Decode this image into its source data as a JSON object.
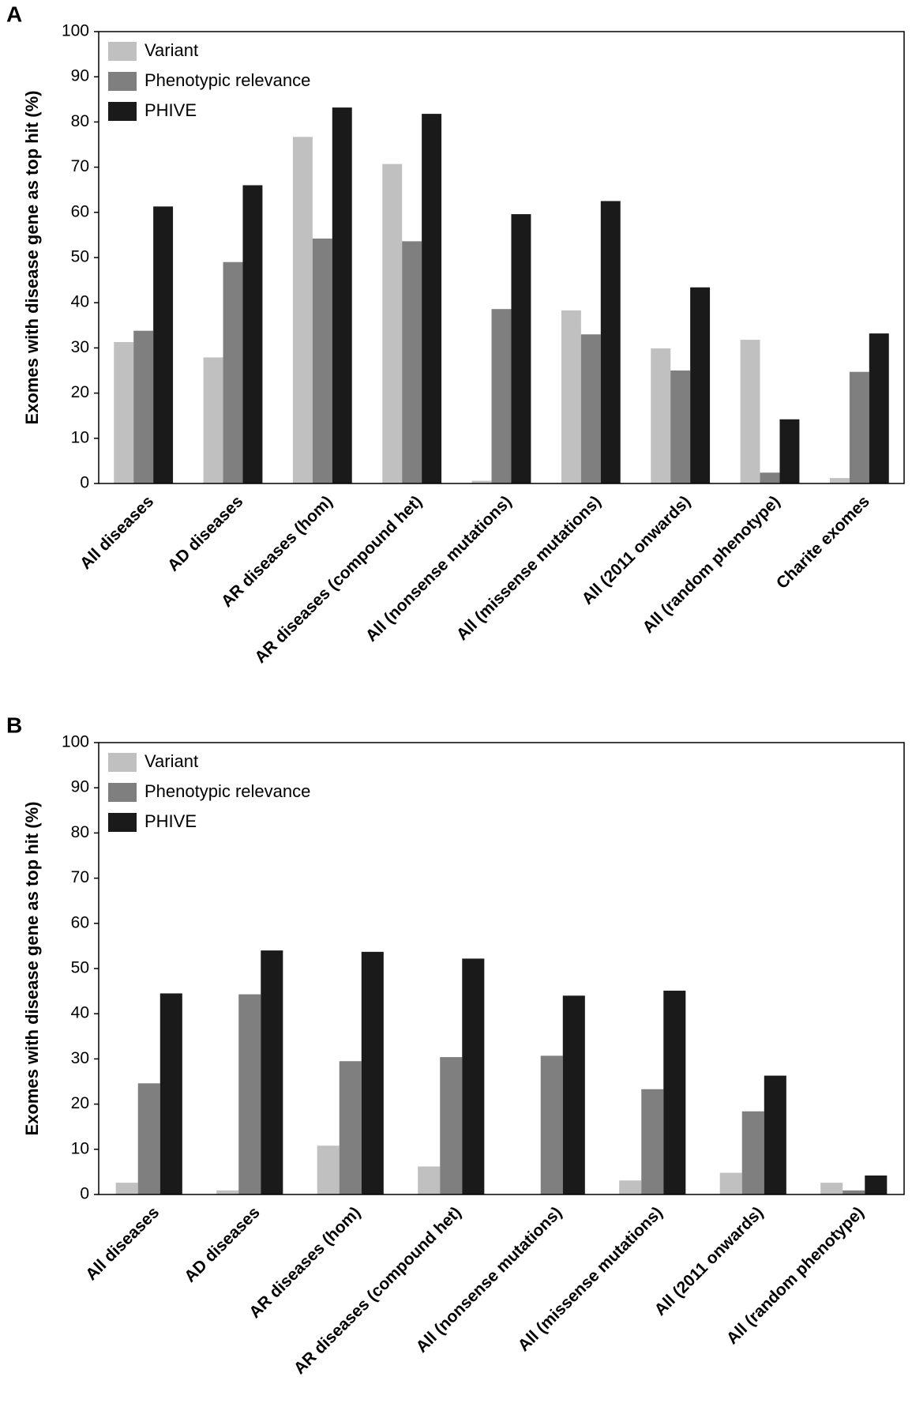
{
  "chart_data": [
    {
      "type": "bar",
      "panel_label": "A",
      "ylabel": "Exomes with disease gene as top hit (%)",
      "categories": [
        "All diseases",
        "AD diseases",
        "AR diseases (hom)",
        "AR diseases (compound het)",
        "All (nonsense mutations)",
        "All (missense mutations)",
        "All (2011 onwards)",
        "All (random phenotype)",
        "Charite exomes"
      ],
      "series": [
        {
          "name": "Variant",
          "color": "#c0c0c0",
          "values": [
            31.3,
            27.9,
            76.7,
            70.7,
            0.6,
            38.3,
            29.9,
            31.8,
            1.2
          ]
        },
        {
          "name": "Phenotypic relevance",
          "color": "#7f7f7f",
          "values": [
            33.8,
            49.0,
            54.2,
            53.6,
            38.6,
            33.0,
            25.0,
            2.4,
            24.7
          ]
        },
        {
          "name": "PHIVE",
          "color": "#1a1a1a",
          "values": [
            61.3,
            66.0,
            83.2,
            81.8,
            59.6,
            62.5,
            43.4,
            14.2,
            33.2
          ]
        }
      ],
      "ylim": [
        0,
        100
      ],
      "yticks": [
        0,
        10,
        20,
        30,
        40,
        50,
        60,
        70,
        80,
        90,
        100
      ],
      "legend": "upper left"
    },
    {
      "type": "bar",
      "panel_label": "B",
      "ylabel": "Exomes with disease gene as top hit (%)",
      "categories": [
        "All diseases",
        "AD diseases",
        "AR diseases (hom)",
        "AR diseases (compound het)",
        "All (nonsense mutations)",
        "All (missense mutations)",
        "All (2011 onwards)",
        "All (random phenotype)"
      ],
      "series": [
        {
          "name": "Variant",
          "color": "#c0c0c0",
          "values": [
            2.6,
            0.9,
            10.8,
            6.2,
            0,
            3.1,
            4.8,
            2.6
          ]
        },
        {
          "name": "Phenotypic relevance",
          "color": "#7f7f7f",
          "values": [
            24.6,
            44.3,
            29.5,
            30.4,
            30.7,
            23.3,
            18.4,
            0.9
          ]
        },
        {
          "name": "PHIVE",
          "color": "#1a1a1a",
          "values": [
            44.5,
            54.0,
            53.7,
            52.2,
            44.0,
            45.1,
            26.3,
            4.2
          ]
        }
      ],
      "ylim": [
        0,
        100
      ],
      "yticks": [
        0,
        10,
        20,
        30,
        40,
        50,
        60,
        70,
        80,
        90,
        100
      ],
      "legend": "upper left"
    }
  ]
}
